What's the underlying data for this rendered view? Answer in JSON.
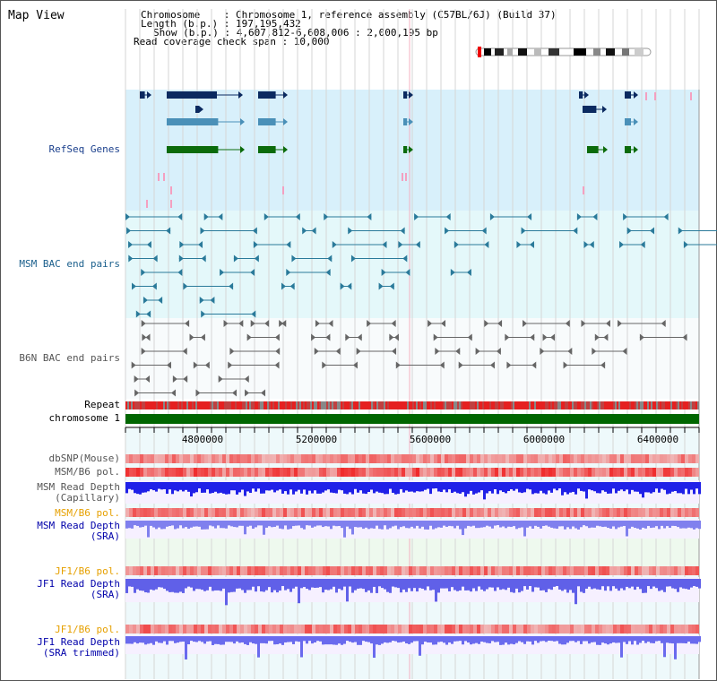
{
  "header": {
    "title": "Map View",
    "info_lines": [
      "Chromosome    : Chromosome 1, reference assembly (C57BL/6J) (Build 37)",
      "Length (b.p.) : 197,195,432",
      "Show (b.p.) : 4,607,812-6,608,006 : 2,000,195 bp",
      "Read coverage check span : 10,000"
    ]
  },
  "tracks": [
    {
      "label": "RefSeq Genes",
      "color": "#1a3f8c"
    },
    {
      "label": "MSM BAC end pairs",
      "color": "#1a5f8c"
    },
    {
      "label": "B6N BAC end pairs",
      "color": "#555555"
    },
    {
      "label": "Repeat",
      "color": "#000000"
    },
    {
      "label": "chromosome 1",
      "color": "#000000"
    },
    {
      "label": "dbSNP(Mouse)",
      "color": "#555555"
    },
    {
      "label": "MSM/B6 pol.",
      "color": "#555555"
    },
    {
      "label": "MSM Read Depth\n(Capillary)",
      "color": "#555555"
    },
    {
      "label": "MSM/B6 pol.",
      "color": "#e6a000"
    },
    {
      "label": "MSM Read Depth\n(SRA)",
      "color": "#0000aa"
    },
    {
      "label": "JF1/B6 pol.",
      "color": "#e6a000"
    },
    {
      "label": "JF1 Read Depth\n(SRA)",
      "color": "#0000aa"
    },
    {
      "label": "JF1/B6 pol.",
      "color": "#e6a000"
    },
    {
      "label": "JF1 Read Depth\n(SRA trimmed)",
      "color": "#0000aa"
    }
  ],
  "axis_ticks": [
    "4800000",
    "5200000",
    "5600000",
    "6000000",
    "6400000"
  ],
  "colors": {
    "refseq_bg": "#d8f0fb",
    "bac_bg": "#e4f8fa",
    "repeat_red": "#e52020",
    "repeat_gray": "#888888",
    "chromosome_green": "#006600",
    "depth_blue": "#1a1aff",
    "depth_blue_light": "#7070ee",
    "pol_red": "#f04040"
  }
}
